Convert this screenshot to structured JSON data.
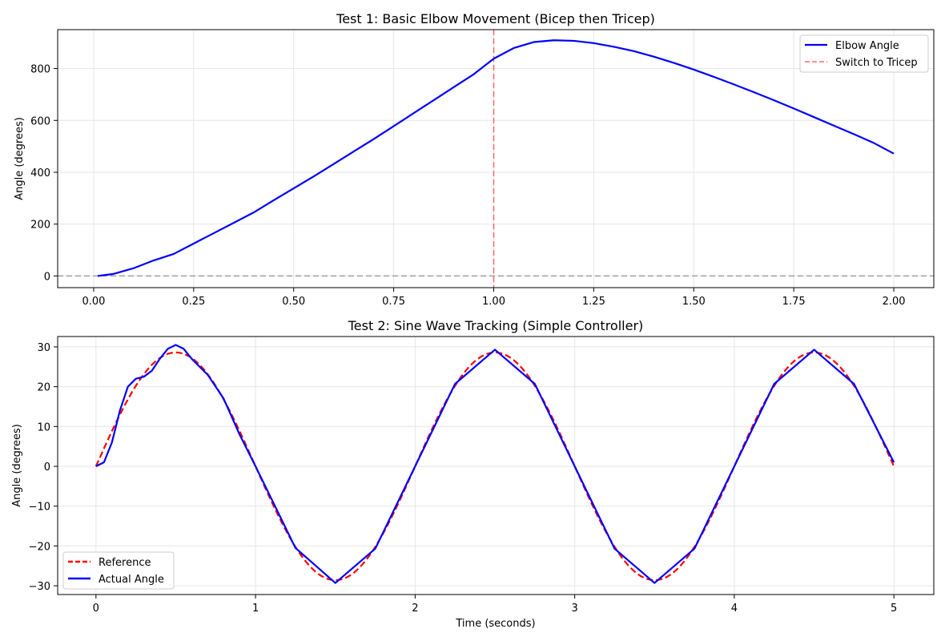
{
  "chart_data": [
    {
      "type": "line",
      "title": "Test 1: Basic Elbow Movement (Bicep then Tricep)",
      "xlabel": "",
      "ylabel": "Angle (degrees)",
      "xlim": [
        -0.09,
        2.1
      ],
      "ylim": [
        -45,
        950
      ],
      "xticks": [
        0.0,
        0.25,
        0.5,
        0.75,
        1.0,
        1.25,
        1.5,
        1.75,
        2.0
      ],
      "xtick_labels": [
        "0.00",
        "0.25",
        "0.50",
        "0.75",
        "1.00",
        "1.25",
        "1.50",
        "1.75",
        "2.00"
      ],
      "yticks": [
        0,
        200,
        400,
        600,
        800
      ],
      "ytick_labels": [
        "0",
        "200",
        "400",
        "600",
        "800"
      ],
      "grid": true,
      "legend_position": "top-right",
      "series": [
        {
          "name": "Elbow Angle",
          "color": "#0000ff",
          "style": "solid",
          "x": [
            0.01,
            0.05,
            0.1,
            0.15,
            0.2,
            0.25,
            0.3,
            0.35,
            0.4,
            0.45,
            0.5,
            0.55,
            0.6,
            0.65,
            0.7,
            0.75,
            0.8,
            0.85,
            0.9,
            0.95,
            1.0,
            1.05,
            1.1,
            1.15,
            1.2,
            1.25,
            1.3,
            1.35,
            1.4,
            1.45,
            1.5,
            1.55,
            1.6,
            1.65,
            1.7,
            1.75,
            1.8,
            1.85,
            1.9,
            1.95,
            2.0
          ],
          "y": [
            0,
            8,
            30,
            60,
            85,
            125,
            165,
            205,
            245,
            292,
            338,
            384,
            432,
            480,
            528,
            578,
            628,
            678,
            728,
            778,
            838,
            879,
            902,
            909,
            907,
            898,
            884,
            867,
            846,
            822,
            796,
            768,
            739,
            709,
            678,
            646,
            613,
            580,
            547,
            513,
            472
          ]
        }
      ],
      "reference_lines": [
        {
          "orientation": "vertical",
          "value": 1.0,
          "name": "Switch to Tricep",
          "color": "#ff6666",
          "style": "dashed"
        },
        {
          "orientation": "horizontal",
          "value": 0,
          "color": "#a0a0a0",
          "style": "dashed"
        }
      ]
    },
    {
      "type": "line",
      "title": "Test 2: Sine Wave Tracking (Simple Controller)",
      "xlabel": "Time (seconds)",
      "ylabel": "Angle (degrees)",
      "xlim": [
        -0.24,
        5.25
      ],
      "ylim": [
        -32.2,
        32.6
      ],
      "xticks": [
        0,
        1,
        2,
        3,
        4,
        5
      ],
      "xtick_labels": [
        "0",
        "1",
        "2",
        "3",
        "4",
        "5"
      ],
      "yticks": [
        -30,
        -20,
        -10,
        0,
        10,
        20,
        30
      ],
      "ytick_labels": [
        "−30",
        "−20",
        "−10",
        "0",
        "10",
        "20",
        "30"
      ],
      "grid": true,
      "legend_position": "bottom-left",
      "series": [
        {
          "name": "Reference",
          "color": "#ff0000",
          "style": "dashed",
          "function": "sin",
          "amplitude": 28.6,
          "period": 2.0,
          "x_range": [
            0,
            5
          ]
        },
        {
          "name": "Actual Angle",
          "color": "#0000ff",
          "style": "solid",
          "x": [
            0.0,
            0.05,
            0.1,
            0.15,
            0.2,
            0.25,
            0.3,
            0.35,
            0.4,
            0.45,
            0.5,
            0.55,
            0.6,
            0.7,
            0.8,
            0.9,
            1.0,
            1.25,
            1.5,
            1.75,
            2.0,
            2.25,
            2.5,
            2.75,
            3.0,
            3.25,
            3.5,
            3.75,
            4.0,
            4.25,
            4.5,
            4.75,
            5.0
          ],
          "y": [
            0,
            1,
            6,
            14,
            20,
            22,
            22.5,
            24,
            27,
            29.5,
            30.5,
            29.5,
            27,
            23,
            17,
            8,
            0,
            -20.5,
            -29.3,
            -20.7,
            0,
            20.7,
            29.3,
            20.7,
            0,
            -20.7,
            -29.3,
            -20.7,
            0,
            20.7,
            29.3,
            20.7,
            1
          ]
        }
      ]
    }
  ]
}
